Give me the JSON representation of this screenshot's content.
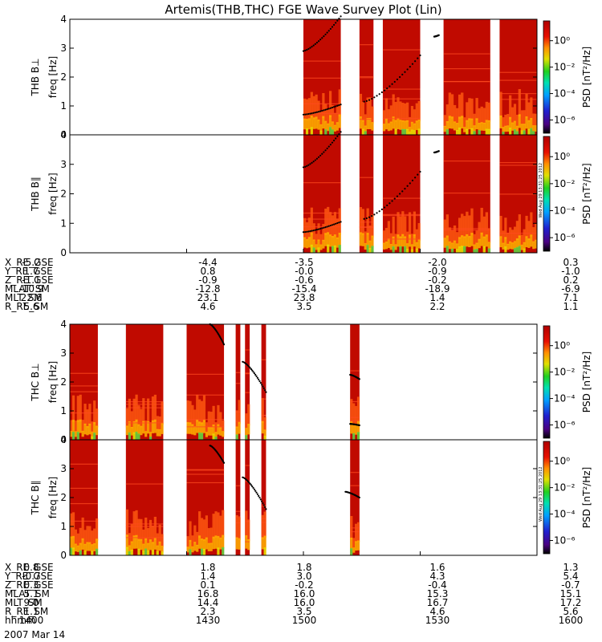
{
  "chart_data": {
    "type": "heatmap",
    "title": "Artemis(THB,THC) FGE Wave Survey Plot (Lin)",
    "colorbar": {
      "label": "PSD [nT²/Hz]",
      "ticks": [
        "10⁶_neg",
        "10⁻⁴",
        "10⁻²",
        "10⁰"
      ],
      "tick_values": [
        -6,
        -4,
        -2,
        0
      ],
      "range_log10": [
        -7,
        1.5
      ],
      "scale": "log"
    },
    "stamp": "Wed Aug 29 13:31:25 2012",
    "panels": [
      {
        "ylabel_line1": "THB B⊥",
        "ylabel_line2": "freq [Hz]",
        "ylim": [
          0,
          4
        ],
        "yticks": [
          "0",
          "1",
          "2",
          "3",
          "4"
        ],
        "data_intervals_frac": [
          [
            0.5,
            0.58
          ],
          [
            0.62,
            0.65
          ],
          [
            0.67,
            0.75
          ],
          [
            0.8,
            0.9
          ],
          [
            0.92,
            1.0
          ]
        ],
        "tracks": [
          {
            "x_frac": [
              0.5,
              0.58
            ],
            "y": [
              0.7,
              1.05
            ]
          },
          {
            "x_frac": [
              0.63,
              0.75
            ],
            "y": [
              1.15,
              2.75
            ]
          },
          {
            "x_frac": [
              0.5,
              0.58
            ],
            "y": [
              2.9,
              4.1
            ]
          },
          {
            "x_frac": [
              0.78,
              0.79
            ],
            "y": [
              3.4,
              3.45
            ]
          }
        ]
      },
      {
        "ylabel_line1": "THB B∥",
        "ylabel_line2": "freq [Hz]",
        "ylim": [
          0,
          4
        ],
        "yticks": [
          "0",
          "1",
          "2",
          "3",
          "4"
        ],
        "data_intervals_frac": [
          [
            0.5,
            0.58
          ],
          [
            0.62,
            0.65
          ],
          [
            0.67,
            0.75
          ],
          [
            0.8,
            0.9
          ],
          [
            0.92,
            1.0
          ]
        ],
        "tracks": [
          {
            "x_frac": [
              0.5,
              0.58
            ],
            "y": [
              0.7,
              1.05
            ]
          },
          {
            "x_frac": [
              0.63,
              0.75
            ],
            "y": [
              1.15,
              2.75
            ]
          },
          {
            "x_frac": [
              0.5,
              0.58
            ],
            "y": [
              2.9,
              4.1
            ]
          },
          {
            "x_frac": [
              0.78,
              0.79
            ],
            "y": [
              3.4,
              3.45
            ]
          }
        ]
      },
      {
        "ylabel_line1": "THC B⊥",
        "ylabel_line2": "freq [Hz]",
        "ylim": [
          0,
          4
        ],
        "yticks": [
          "0",
          "1",
          "2",
          "3",
          "4"
        ],
        "data_intervals_frac": [
          [
            0.0,
            0.06
          ],
          [
            0.12,
            0.2
          ],
          [
            0.25,
            0.33
          ],
          [
            0.355,
            0.365
          ],
          [
            0.375,
            0.385
          ],
          [
            0.41,
            0.42
          ],
          [
            0.6,
            0.62
          ]
        ],
        "tracks": [
          {
            "x_frac": [
              0.3,
              0.33
            ],
            "y": [
              4.0,
              3.3
            ]
          },
          {
            "x_frac": [
              0.37,
              0.42
            ],
            "y": [
              2.7,
              1.65
            ]
          },
          {
            "x_frac": [
              0.6,
              0.62
            ],
            "y": [
              2.25,
              2.1
            ]
          },
          {
            "x_frac": [
              0.6,
              0.62
            ],
            "y": [
              0.55,
              0.5
            ]
          }
        ]
      },
      {
        "ylabel_line1": "THC B∥",
        "ylabel_line2": "freq [Hz]",
        "ylim": [
          0,
          4
        ],
        "yticks": [
          "0",
          "1",
          "2",
          "3",
          "4"
        ],
        "data_intervals_frac": [
          [
            0.0,
            0.06
          ],
          [
            0.12,
            0.2
          ],
          [
            0.25,
            0.33
          ],
          [
            0.355,
            0.365
          ],
          [
            0.375,
            0.385
          ],
          [
            0.41,
            0.42
          ],
          [
            0.6,
            0.62
          ]
        ],
        "tracks": [
          {
            "x_frac": [
              0.3,
              0.33
            ],
            "y": [
              3.8,
              3.2
            ]
          },
          {
            "x_frac": [
              0.37,
              0.42
            ],
            "y": [
              2.7,
              1.6
            ]
          },
          {
            "x_frac": [
              0.59,
              0.62
            ],
            "y": [
              2.2,
              2.0
            ]
          }
        ]
      }
    ],
    "orbit_tables": [
      {
        "rows": [
          {
            "label": "X_RE_GSE",
            "values": [
              "-5.2",
              "-4.4",
              "-3.5",
              "-2.0",
              "0.3"
            ]
          },
          {
            "label": "Y_RE_GSE",
            "values": [
              "1.7",
              "0.8",
              "-0.0",
              "-0.9",
              "-1.0"
            ]
          },
          {
            "label": "Z_RE_GSE",
            "values": [
              "-1.1",
              "-0.9",
              "-0.6",
              "-0.2",
              "0.2"
            ]
          },
          {
            "label": "MLAT_SM",
            "values": [
              "-10.9",
              "-12.8",
              "-15.4",
              "-18.9",
              "-6.9"
            ]
          },
          {
            "label": "MLT_SM",
            "values": [
              "22.6",
              "23.1",
              "23.8",
              "1.4",
              "7.1"
            ]
          },
          {
            "label": "R_RE_SM",
            "values": [
              "5.6",
              "4.6",
              "3.5",
              "2.2",
              "1.1"
            ]
          }
        ]
      },
      {
        "rows": [
          {
            "label": "X_RE_GSE",
            "values": [
              "0.8",
              "1.8",
              "1.8",
              "1.6",
              "1.3"
            ]
          },
          {
            "label": "Y_RE_GSE",
            "values": [
              "-0.7",
              "1.4",
              "3.0",
              "4.3",
              "5.4"
            ]
          },
          {
            "label": "Z_RE_GSE",
            "values": [
              "0.3",
              "0.1",
              "-0.2",
              "-0.4",
              "-0.7"
            ]
          },
          {
            "label": "MLAT_SM",
            "values": [
              "5.1",
              "16.8",
              "16.0",
              "15.3",
              "15.1"
            ]
          },
          {
            "label": "MLT_SM",
            "values": [
              "9.0",
              "14.4",
              "16.0",
              "16.7",
              "17.2"
            ]
          },
          {
            "label": "R_RE_SM",
            "values": [
              "1.1",
              "2.3",
              "3.5",
              "4.6",
              "5.6"
            ]
          },
          {
            "label": "hhmm",
            "values": [
              "1400",
              "1430",
              "1500",
              "1530",
              "1600"
            ]
          }
        ]
      }
    ],
    "date_label": "2007 Mar 14"
  }
}
